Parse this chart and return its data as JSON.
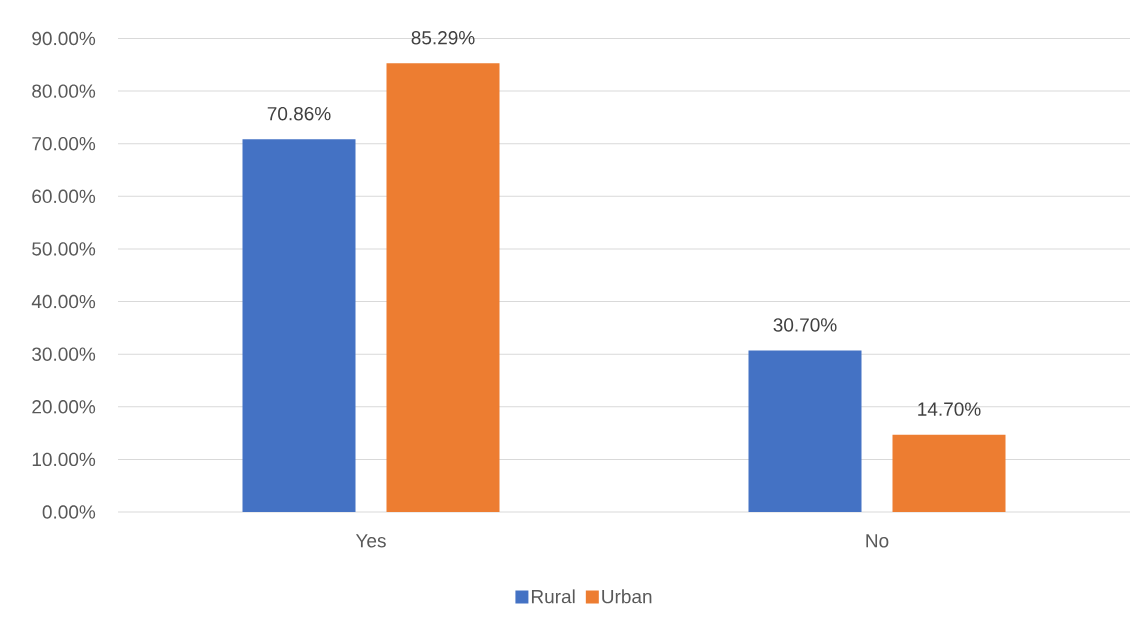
{
  "chart_data": {
    "type": "bar",
    "categories": [
      "Yes",
      "No"
    ],
    "series": [
      {
        "name": "Rural",
        "color": "#4472c4",
        "values": [
          70.86,
          30.7
        ],
        "value_labels": [
          "70.86%",
          "30.70%"
        ]
      },
      {
        "name": "Urban",
        "color": "#ed7d31",
        "values": [
          85.29,
          14.7
        ],
        "value_labels": [
          "85.29%",
          "14.70%"
        ]
      }
    ],
    "ylim": [
      0,
      90
    ],
    "yticks": [
      {
        "value": 0,
        "label": "0.00%"
      },
      {
        "value": 10,
        "label": "10.00%"
      },
      {
        "value": 20,
        "label": "20.00%"
      },
      {
        "value": 30,
        "label": "30.00%"
      },
      {
        "value": 40,
        "label": "40.00%"
      },
      {
        "value": 50,
        "label": "50.00%"
      },
      {
        "value": 60,
        "label": "60.00%"
      },
      {
        "value": 70,
        "label": "70.00%"
      },
      {
        "value": 80,
        "label": "80.00%"
      },
      {
        "value": 90,
        "label": "90.00%"
      }
    ],
    "grid": "y",
    "legend": "bottom"
  }
}
